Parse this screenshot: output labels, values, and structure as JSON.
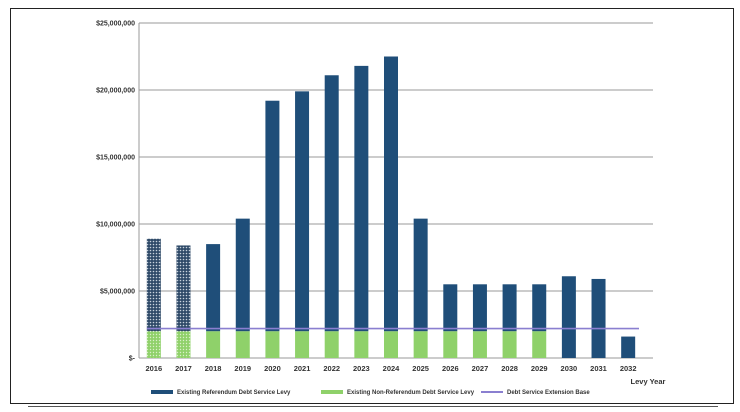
{
  "chart_data": {
    "type": "bar",
    "title": "",
    "xlabel": "Levy Year",
    "ylabel": "",
    "ylim": [
      0,
      25000000
    ],
    "y_tick_values": [
      0,
      5000000,
      10000000,
      15000000,
      20000000,
      25000000
    ],
    "y_tick_labels": [
      "$-",
      "$5,000,000",
      "$10,000,000",
      "$15,000,000",
      "$20,000,000",
      "$25,000,000"
    ],
    "grid": true,
    "stacked": true,
    "categories": [
      "2016",
      "2017",
      "2018",
      "2019",
      "2020",
      "2021",
      "2022",
      "2023",
      "2024",
      "2025",
      "2026",
      "2027",
      "2028",
      "2029",
      "2030",
      "2031",
      "2032"
    ],
    "series": [
      {
        "name": "Existing Non-Referendum Debt Service Levy",
        "color": "#8fd16a",
        "values": [
          2000000,
          2000000,
          2000000,
          2000000,
          2000000,
          2000000,
          2000000,
          2000000,
          2000000,
          2000000,
          2000000,
          2000000,
          2000000,
          2000000,
          0,
          0,
          0
        ]
      },
      {
        "name": "Existing Referendum Debt Service Levy",
        "color": "#1f4e79",
        "values": [
          6900000,
          6400000,
          6500000,
          8400000,
          17200000,
          17900000,
          19100000,
          19800000,
          20500000,
          8400000,
          3500000,
          3500000,
          3500000,
          3500000,
          6100000,
          5900000,
          1600000
        ]
      }
    ],
    "hatched_categories": [
      "2016",
      "2017"
    ],
    "line": {
      "name": "Debt Service Extension Base",
      "color": "#8a7fd0",
      "value": 2200000
    },
    "legend": {
      "placement": "bottom",
      "order": [
        "Existing Referendum Debt Service Levy",
        "Existing Non-Referendum Debt Service Levy",
        "Debt Service Extension Base"
      ]
    }
  }
}
